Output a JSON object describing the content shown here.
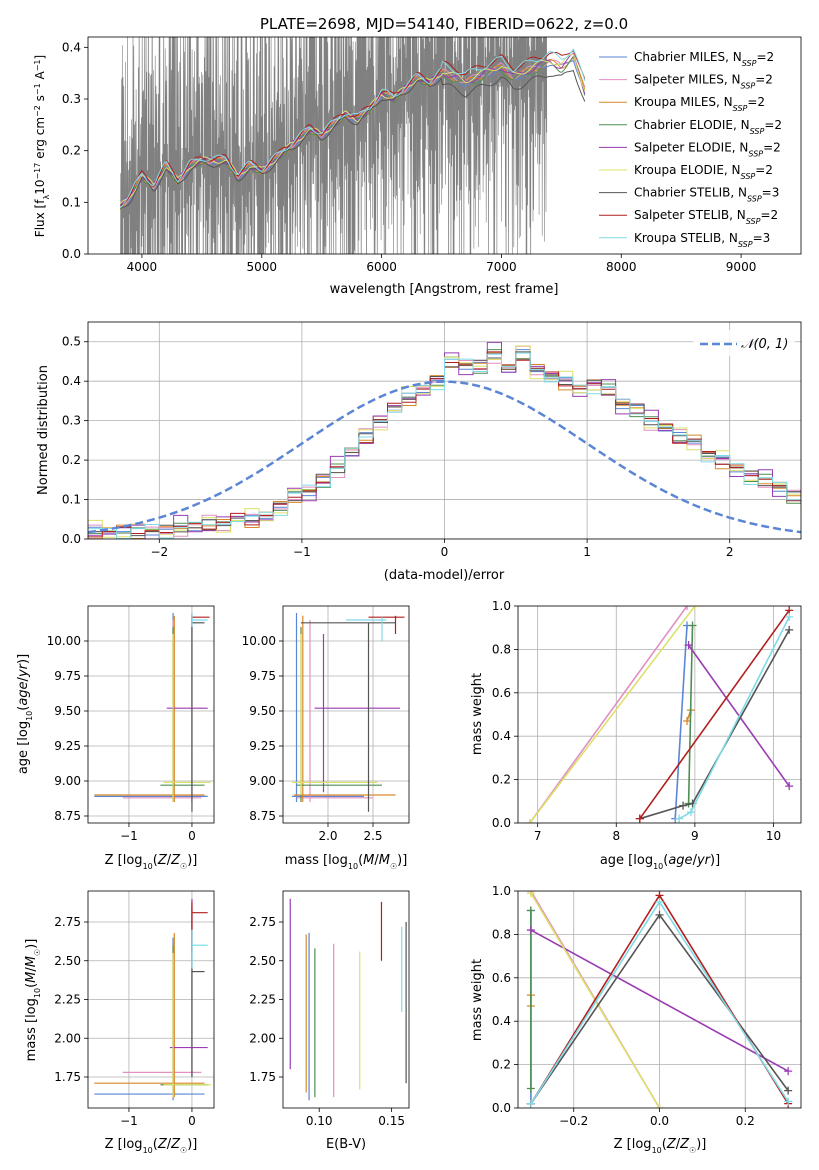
{
  "figure": {
    "title": "PLATE=2698, MJD=54140, FIBERID=0622, z=0.0"
  },
  "colors": {
    "chab_miles": "#5b86d6",
    "salp_miles": "#e28fc4",
    "krou_miles": "#d8892a",
    "chab_elodie": "#4e8f50",
    "salp_elodie": "#9a3cb3",
    "krou_elodie": "#dde06a",
    "chab_stelib": "#555555",
    "salp_stelib": "#b21f1f",
    "krou_stelib": "#7fdbe6",
    "data": "#808080",
    "normal": "#5b86d6"
  },
  "chart_data": [
    {
      "id": "spectrum",
      "type": "line",
      "xlabel": "wavelength [Angstrom, rest frame]",
      "ylabel": "Flux [f_λ 10^-17 erg cm^-2 s^-1 A^-1]",
      "xlim": [
        3550,
        9500
      ],
      "ylim": [
        0,
        0.42
      ],
      "xticks": [
        4000,
        5000,
        6000,
        7000,
        8000,
        9000
      ],
      "yticks": [
        0.0,
        0.1,
        0.2,
        0.3,
        0.4
      ],
      "grid": false,
      "legend_position": "top-right",
      "legend": [
        {
          "label": "Chabrier MILES, N",
          "sub": "SSP",
          "tail": "=2",
          "color": "chab_miles"
        },
        {
          "label": "Salpeter MILES, N",
          "sub": "SSP",
          "tail": "=2",
          "color": "salp_miles"
        },
        {
          "label": "Kroupa MILES, N",
          "sub": "SSP",
          "tail": "=2",
          "color": "krou_miles"
        },
        {
          "label": "Chabrier ELODIE, N",
          "sub": "SSP",
          "tail": "=2",
          "color": "chab_elodie"
        },
        {
          "label": "Salpeter ELODIE, N",
          "sub": "SSP",
          "tail": "=2",
          "color": "salp_elodie"
        },
        {
          "label": "Kroupa ELODIE, N",
          "sub": "SSP",
          "tail": "=2",
          "color": "krou_elodie"
        },
        {
          "label": "Chabrier STELIB, N",
          "sub": "SSP",
          "tail": "=3",
          "color": "chab_stelib"
        },
        {
          "label": "Salpeter STELIB, N",
          "sub": "SSP",
          "tail": "=2",
          "color": "salp_stelib"
        },
        {
          "label": "Kroupa STELIB, N",
          "sub": "SSP",
          "tail": "=3",
          "color": "krou_stelib"
        }
      ],
      "data_range": [
        3820,
        7380
      ],
      "model_curve": {
        "x": [
          3820,
          3900,
          4000,
          4100,
          4200,
          4300,
          4400,
          4500,
          4600,
          4700,
          4800,
          4900,
          5000,
          5100,
          5200,
          5300,
          5400,
          5500,
          5600,
          5700,
          5800,
          5900,
          6000,
          6100,
          6200,
          6300,
          6400,
          6500,
          6600,
          6700,
          6800,
          6900,
          7000,
          7100,
          7200,
          7300,
          7400,
          7500,
          7600,
          7700
        ],
        "y": [
          0.09,
          0.11,
          0.15,
          0.13,
          0.17,
          0.14,
          0.17,
          0.18,
          0.18,
          0.18,
          0.15,
          0.17,
          0.16,
          0.18,
          0.2,
          0.22,
          0.24,
          0.23,
          0.25,
          0.27,
          0.26,
          0.28,
          0.31,
          0.3,
          0.32,
          0.34,
          0.33,
          0.35,
          0.34,
          0.33,
          0.34,
          0.35,
          0.36,
          0.34,
          0.35,
          0.36,
          0.37,
          0.36,
          0.38,
          0.31
        ]
      },
      "model_offsets": [
        0.0,
        0.004,
        0.002,
        -0.003,
        0.003,
        0.006,
        -0.02,
        0.02,
        0.018
      ]
    },
    {
      "id": "residuals",
      "type": "histogram",
      "xlabel": "(data-model)/error",
      "ylabel": "Normed distribution",
      "xlim": [
        -2.5,
        2.5
      ],
      "ylim": [
        0,
        0.55
      ],
      "xticks": [
        -2,
        -1,
        0,
        1,
        2
      ],
      "yticks": [
        0.0,
        0.1,
        0.2,
        0.3,
        0.4,
        0.5
      ],
      "grid": true,
      "legend_position": "top-right",
      "legend": [
        {
          "label": "𝒩(0, 1)",
          "color": "normal",
          "style": "dashed"
        }
      ],
      "bin_edges_start": -2.5,
      "bin_width": 0.1,
      "values": [
        0.02,
        0.02,
        0.02,
        0.02,
        0.02,
        0.02,
        0.03,
        0.03,
        0.04,
        0.04,
        0.05,
        0.05,
        0.06,
        0.08,
        0.11,
        0.12,
        0.15,
        0.18,
        0.22,
        0.26,
        0.3,
        0.33,
        0.36,
        0.38,
        0.4,
        0.45,
        0.44,
        0.44,
        0.47,
        0.43,
        0.47,
        0.43,
        0.41,
        0.4,
        0.38,
        0.39,
        0.38,
        0.34,
        0.33,
        0.3,
        0.28,
        0.26,
        0.25,
        0.21,
        0.2,
        0.18,
        0.16,
        0.15,
        0.13,
        0.11,
        0.1
      ],
      "series_jitter": [
        0.0,
        0.015,
        -0.012,
        0.01,
        0.02,
        -0.018,
        0.006,
        -0.008,
        0.012
      ],
      "normal_curve": {
        "mean": 0,
        "sd": 1
      }
    },
    {
      "id": "age-vs-Z",
      "type": "scatter",
      "xlabel": "Z [log10(Z/Z☉)]",
      "ylabel": "age  [log10(age/yr)]",
      "xlim": [
        -1.65,
        0.35
      ],
      "ylim": [
        8.7,
        10.25
      ],
      "xticks": [
        -1,
        0
      ],
      "yticks": [
        8.75,
        9.0,
        9.25,
        9.5,
        9.75,
        10.0
      ],
      "grid": true,
      "points": [
        {
          "model": "chab_miles",
          "x": -0.3,
          "y": 8.89,
          "xlo": -1.55,
          "xhi": 0.25,
          "ylo": 8.85,
          "yhi": 10.2
        },
        {
          "model": "salp_miles",
          "x": -0.3,
          "y": 8.88,
          "xlo": -1.1,
          "xhi": 0.15,
          "ylo": 8.85,
          "yhi": 10.15
        },
        {
          "model": "krou_miles",
          "x": -0.28,
          "y": 8.9,
          "xlo": -1.55,
          "xhi": 0.2,
          "ylo": 8.85,
          "yhi": 10.18
        },
        {
          "model": "chab_elodie",
          "x": -0.3,
          "y": 8.97,
          "xlo": -0.5,
          "xhi": 0.2,
          "ylo": 8.85,
          "yhi": 10.1
        },
        {
          "model": "salp_elodie",
          "x": 0.0,
          "y": 9.52,
          "xlo": -0.4,
          "xhi": 0.25,
          "ylo": 8.85,
          "yhi": 10.15
        },
        {
          "model": "krou_elodie",
          "x": -0.3,
          "y": 8.99,
          "xlo": -0.45,
          "xhi": 0.3,
          "ylo": 8.85,
          "yhi": 10.05
        },
        {
          "model": "chab_stelib",
          "x": 0.0,
          "y": 10.13,
          "xlo": 0.0,
          "xhi": 0.2,
          "ylo": 8.78,
          "yhi": 10.18
        },
        {
          "model": "salp_stelib",
          "x": 0.0,
          "y": 10.17,
          "xlo": 0.0,
          "xhi": 0.28,
          "ylo": 10.15,
          "yhi": 10.2
        },
        {
          "model": "krou_stelib",
          "x": 0.0,
          "y": 10.15,
          "xlo": 0.0,
          "xhi": 0.25,
          "ylo": 10.1,
          "yhi": 10.2
        }
      ]
    },
    {
      "id": "age-vs-mass",
      "type": "scatter",
      "xlabel": "mass [log10(M/M☉)]",
      "ylabel": "",
      "xlim": [
        1.5,
        2.9
      ],
      "ylim": [
        8.7,
        10.25
      ],
      "xticks": [
        2.0,
        2.5
      ],
      "yticks": [
        8.75,
        9.0,
        9.25,
        9.5,
        9.75,
        10.0
      ],
      "grid": true,
      "points": [
        {
          "model": "chab_miles",
          "x": 1.65,
          "y": 8.89,
          "xlo": 1.6,
          "xhi": 2.4,
          "ylo": 8.85,
          "yhi": 10.2
        },
        {
          "model": "salp_miles",
          "x": 1.8,
          "y": 8.88,
          "xlo": 1.65,
          "xhi": 2.5,
          "ylo": 8.85,
          "yhi": 10.15
        },
        {
          "model": "krou_miles",
          "x": 1.72,
          "y": 8.9,
          "xlo": 1.62,
          "xhi": 2.75,
          "ylo": 8.85,
          "yhi": 10.18
        },
        {
          "model": "chab_elodie",
          "x": 1.7,
          "y": 8.97,
          "xlo": 1.65,
          "xhi": 2.6,
          "ylo": 8.85,
          "yhi": 10.1
        },
        {
          "model": "salp_elodie",
          "x": 1.95,
          "y": 9.52,
          "xlo": 1.85,
          "xhi": 2.8,
          "ylo": 8.92,
          "yhi": 10.05
        },
        {
          "model": "krou_elodie",
          "x": 1.7,
          "y": 8.99,
          "xlo": 1.6,
          "xhi": 2.55,
          "ylo": 8.9,
          "yhi": 10.05
        },
        {
          "model": "chab_stelib",
          "x": 2.45,
          "y": 10.13,
          "xlo": 1.7,
          "xhi": 2.75,
          "ylo": 8.78,
          "yhi": 10.13
        },
        {
          "model": "salp_stelib",
          "x": 2.75,
          "y": 10.17,
          "xlo": 2.45,
          "xhi": 2.85,
          "ylo": 10.05,
          "yhi": 10.18
        },
        {
          "model": "krou_stelib",
          "x": 2.6,
          "y": 10.15,
          "xlo": 2.2,
          "xhi": 2.65,
          "ylo": 10.0,
          "yhi": 10.17
        }
      ]
    },
    {
      "id": "weight-vs-age",
      "type": "line",
      "xlabel": "age  [log10(age/yr)]",
      "ylabel": "mass weight",
      "xlim": [
        6.75,
        10.35
      ],
      "ylim": [
        0,
        1
      ],
      "xticks": [
        7,
        8,
        9,
        10
      ],
      "yticks": [
        0.0,
        0.2,
        0.4,
        0.6,
        0.8,
        1.0
      ],
      "grid": true,
      "series": [
        {
          "model": "chab_miles",
          "x": [
            8.75,
            8.9
          ],
          "y": [
            0.02,
            0.91
          ]
        },
        {
          "model": "salp_miles",
          "x": [
            6.9,
            8.9
          ],
          "y": [
            0.0,
            1.0
          ]
        },
        {
          "model": "krou_miles",
          "x": [
            8.9,
            8.95
          ],
          "y": [
            0.47,
            0.52
          ]
        },
        {
          "model": "chab_elodie",
          "x": [
            8.92,
            8.97
          ],
          "y": [
            0.09,
            0.91
          ]
        },
        {
          "model": "salp_elodie",
          "x": [
            8.92,
            10.2
          ],
          "y": [
            0.82,
            0.17
          ]
        },
        {
          "model": "krou_elodie",
          "x": [
            6.9,
            9.0
          ],
          "y": [
            0.0,
            1.0
          ]
        },
        {
          "model": "chab_stelib",
          "x": [
            8.3,
            8.85,
            8.97,
            10.2
          ],
          "y": [
            0.02,
            0.08,
            0.09,
            0.89
          ]
        },
        {
          "model": "salp_stelib",
          "x": [
            8.3,
            10.2
          ],
          "y": [
            0.02,
            0.98
          ]
        },
        {
          "model": "krou_stelib",
          "x": [
            8.8,
            8.95,
            10.2
          ],
          "y": [
            0.02,
            0.05,
            0.95
          ]
        }
      ]
    },
    {
      "id": "mass-vs-Z",
      "type": "scatter",
      "xlabel": "Z [log10(Z/Z☉)]",
      "ylabel": "mass [log10(M/M☉)]",
      "xlim": [
        -1.65,
        0.35
      ],
      "ylim": [
        1.55,
        2.95
      ],
      "xticks": [
        -1,
        0
      ],
      "yticks": [
        1.75,
        2.0,
        2.25,
        2.5,
        2.75
      ],
      "grid": true,
      "points": [
        {
          "model": "chab_miles",
          "x": -0.3,
          "y": 1.64,
          "xlo": -1.55,
          "xhi": 0.2,
          "ylo": 1.6,
          "yhi": 2.65
        },
        {
          "model": "salp_miles",
          "x": -0.3,
          "y": 1.78,
          "xlo": -1.1,
          "xhi": 0.15,
          "ylo": 1.65,
          "yhi": 2.55
        },
        {
          "model": "krou_miles",
          "x": -0.28,
          "y": 1.71,
          "xlo": -1.55,
          "xhi": 0.2,
          "ylo": 1.62,
          "yhi": 2.68
        },
        {
          "model": "chab_elodie",
          "x": -0.3,
          "y": 1.7,
          "xlo": -0.5,
          "xhi": 0.25,
          "ylo": 1.64,
          "yhi": 2.6
        },
        {
          "model": "salp_elodie",
          "x": 0.0,
          "y": 1.94,
          "xlo": -0.35,
          "xhi": 0.25,
          "ylo": 1.75,
          "yhi": 2.9
        },
        {
          "model": "krou_elodie",
          "x": -0.3,
          "y": 1.7,
          "xlo": -0.45,
          "xhi": 0.3,
          "ylo": 1.62,
          "yhi": 2.55
        },
        {
          "model": "chab_stelib",
          "x": 0.0,
          "y": 2.43,
          "xlo": 0.0,
          "xhi": 0.2,
          "ylo": 1.75,
          "yhi": 2.85
        },
        {
          "model": "salp_stelib",
          "x": 0.0,
          "y": 2.81,
          "xlo": 0.0,
          "xhi": 0.25,
          "ylo": 2.55,
          "yhi": 2.88
        },
        {
          "model": "krou_stelib",
          "x": 0.0,
          "y": 2.6,
          "xlo": 0.0,
          "xhi": 0.25,
          "ylo": 2.45,
          "yhi": 2.7
        }
      ]
    },
    {
      "id": "mass-vs-EBV",
      "type": "scatter",
      "xlabel": "E(B-V)",
      "ylabel": "",
      "xlim": [
        0.075,
        0.162
      ],
      "ylim": [
        1.55,
        2.95
      ],
      "xticks": [
        0.1,
        0.15
      ],
      "yticks": [
        1.75,
        2.0,
        2.25,
        2.5,
        2.75
      ],
      "grid": false,
      "points": [
        {
          "model": "salp_elodie",
          "x": 0.08,
          "ylo": 1.8,
          "yhi": 2.9
        },
        {
          "model": "krou_miles",
          "x": 0.091,
          "ylo": 1.65,
          "yhi": 2.67
        },
        {
          "model": "chab_miles",
          "x": 0.093,
          "ylo": 1.6,
          "yhi": 2.68
        },
        {
          "model": "chab_elodie",
          "x": 0.097,
          "ylo": 1.62,
          "yhi": 2.58
        },
        {
          "model": "salp_miles",
          "x": 0.11,
          "ylo": 1.62,
          "yhi": 2.61
        },
        {
          "model": "krou_elodie",
          "x": 0.128,
          "ylo": 1.67,
          "yhi": 2.56
        },
        {
          "model": "salp_stelib",
          "x": 0.143,
          "ylo": 2.5,
          "yhi": 2.88
        },
        {
          "model": "krou_stelib",
          "x": 0.157,
          "ylo": 2.17,
          "yhi": 2.72
        },
        {
          "model": "chab_stelib",
          "x": 0.16,
          "ylo": 1.71,
          "yhi": 2.75
        }
      ]
    },
    {
      "id": "weight-vs-Z",
      "type": "line",
      "xlabel": "Z [log10(Z/Z☉)]",
      "ylabel": "mass weight",
      "xlim": [
        -0.33,
        0.33
      ],
      "ylim": [
        0,
        1
      ],
      "xticks": [
        -0.2,
        0.0,
        0.2
      ],
      "yticks": [
        0.0,
        0.2,
        0.4,
        0.6,
        0.8,
        1.0
      ],
      "grid": true,
      "series": [
        {
          "model": "chab_miles",
          "x": [
            -0.3,
            -0.3
          ],
          "y": [
            0.02,
            0.91
          ]
        },
        {
          "model": "salp_miles",
          "x": [
            -0.3,
            0.0
          ],
          "y": [
            1.0,
            0.0
          ]
        },
        {
          "model": "krou_miles",
          "x": [
            -0.3,
            -0.3
          ],
          "y": [
            0.47,
            0.52
          ]
        },
        {
          "model": "chab_elodie",
          "x": [
            -0.3,
            -0.3
          ],
          "y": [
            0.09,
            0.91
          ]
        },
        {
          "model": "salp_elodie",
          "x": [
            -0.3,
            0.3
          ],
          "y": [
            0.82,
            0.17
          ]
        },
        {
          "model": "krou_elodie",
          "x": [
            -0.3,
            0.0
          ],
          "y": [
            0.99,
            0.0
          ]
        },
        {
          "model": "chab_stelib",
          "x": [
            -0.3,
            0.0,
            0.3
          ],
          "y": [
            0.02,
            0.89,
            0.08
          ]
        },
        {
          "model": "salp_stelib",
          "x": [
            -0.3,
            0.0,
            0.3
          ],
          "y": [
            0.02,
            0.98,
            0.02
          ]
        },
        {
          "model": "krou_stelib",
          "x": [
            -0.3,
            0.0,
            0.3
          ],
          "y": [
            0.02,
            0.95,
            0.03
          ]
        }
      ]
    }
  ]
}
